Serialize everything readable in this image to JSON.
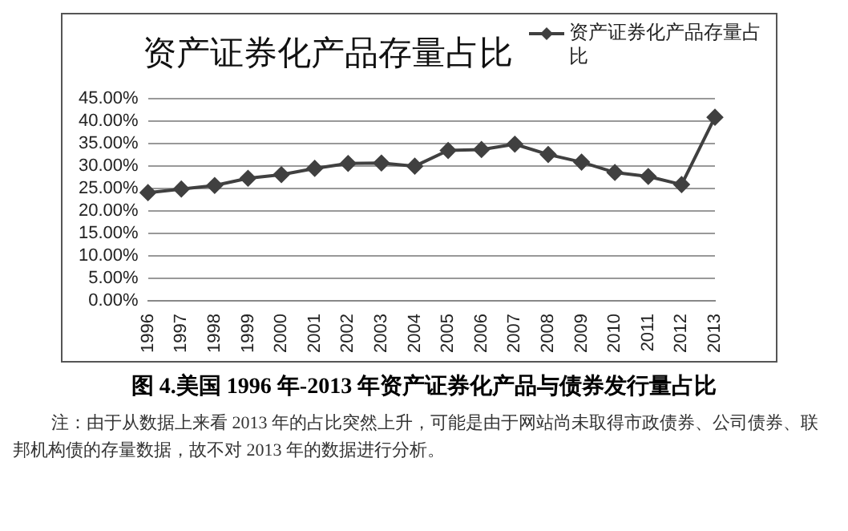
{
  "chart_data": {
    "type": "line",
    "title": "资产证券化产品存量占比",
    "categories": [
      "1996",
      "1997",
      "1998",
      "1999",
      "2000",
      "2001",
      "2002",
      "2003",
      "2004",
      "2005",
      "2006",
      "2007",
      "2008",
      "2009",
      "2010",
      "2011",
      "2012",
      "2013"
    ],
    "series": [
      {
        "name": "资产证券化产品存量占比",
        "color": "#404040",
        "values": [
          24.1,
          24.9,
          25.7,
          27.3,
          28.1,
          29.5,
          30.6,
          30.7,
          30.0,
          33.5,
          33.7,
          34.9,
          32.6,
          30.9,
          28.6,
          27.7,
          25.9,
          40.9
        ]
      }
    ],
    "ylim": [
      0,
      45
    ],
    "yticks": [
      {
        "value": 0,
        "label": "0.00%"
      },
      {
        "value": 5,
        "label": "5.00%"
      },
      {
        "value": 10,
        "label": "10.00%"
      },
      {
        "value": 15,
        "label": "15.00%"
      },
      {
        "value": 20,
        "label": "20.00%"
      },
      {
        "value": 25,
        "label": "25.00%"
      },
      {
        "value": 30,
        "label": "30.00%"
      },
      {
        "value": 35,
        "label": "35.00%"
      },
      {
        "value": 40,
        "label": "40.00%"
      },
      {
        "value": 45,
        "label": "45.00%"
      }
    ],
    "grid": "y",
    "legend": "top right",
    "marker": "diamond",
    "line_style": "solid",
    "annotations": [
      "图 4.美国 1996 年-2013 年资产证券化产品与债券发行量占比",
      "注：由于从数据上来看 2013 年的占比突然上升，可能是由于网站尚未取得市政债券、公司债券、联邦机构债的存量数据，故不对 2013 年的数据进行分析。"
    ]
  }
}
